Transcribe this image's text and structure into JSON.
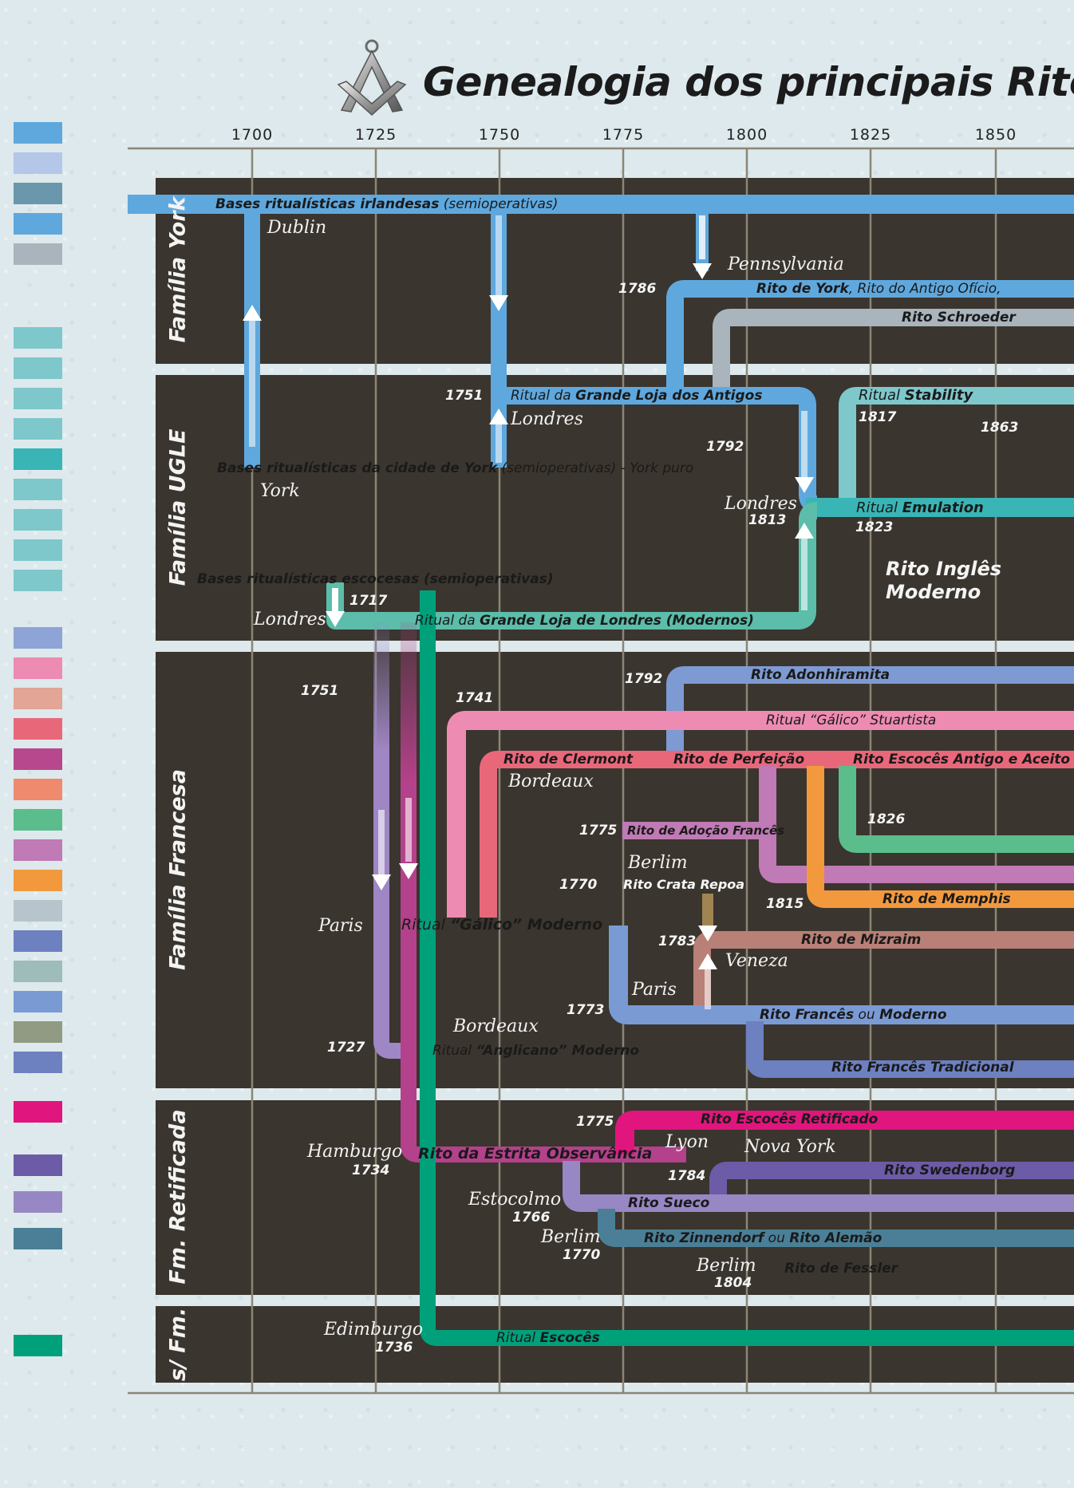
{
  "title": "Genealogia dos principais Ritos",
  "timeline": {
    "years": [
      "1700",
      "1725",
      "1750",
      "1775",
      "1800",
      "1825",
      "1850"
    ]
  },
  "families": {
    "york": "Família York",
    "ugle": "Família UGLE",
    "francesa": "Família Francesa",
    "retificada": "Fm. Retificada",
    "sfm": "s/ Fm."
  },
  "york": {
    "irish_bold": "Bases ritualísticas irlandesas",
    "irish_rest": "(semioperativas)",
    "dublin": "Dublin",
    "pennsylvania": "Pennsylvania",
    "y1786": "1786",
    "york_bold": "Rito de York",
    "york_rest": ", Rito do Antigo Ofício,",
    "schroeder": "Rito Schroeder"
  },
  "ugle": {
    "y1751": "1751",
    "antigos_pre": "Ritual da ",
    "antigos_bold": "Grande Loja dos Antigos",
    "londres_a": "Londres",
    "stability_pre": "Ritual ",
    "stability_bold": "Stability",
    "y1817": "1817",
    "y1863": "1863",
    "y1792": "1792",
    "york_bases_bold": "Bases ritualísticas da cidade de York",
    "york_bases_rest": "(semioperativas) - York puro",
    "york_city": "York",
    "londres_b": "Londres",
    "y1813": "1813",
    "emulation_pre": "Ritual ",
    "emulation_bold": "Emulation",
    "y1823": "1823",
    "ingles_1": "Rito Inglês",
    "ingles_2": "Moderno",
    "scot_bases": "Bases ritualísticas escocesas (semioperativas)",
    "y1717": "1717",
    "londres_c": "Londres",
    "modernos_pre": "Ritual da ",
    "modernos_bold": "Grande Loja de Londres (Modernos)"
  },
  "francesa": {
    "y1751": "1751",
    "y1741": "1741",
    "y1792": "1792",
    "adonhiramita": "Rito Adonhiramita",
    "galico_stuart": "Ritual “Gálico” Stuartista",
    "clermont": "Rito de Clermont",
    "perfeicao": "Rito de Perfeição",
    "reaa": "Rito Escocês Antigo e Aceito",
    "bordeaux_a": "Bordeaux",
    "y1826": "1826",
    "y1775": "1775",
    "adocao": "Rito de Adoção Francês",
    "berlim": "Berlim",
    "y1770": "1770",
    "crata": "Rito Crata Repoa",
    "y1815": "1815",
    "memphis": "Rito de Memphis",
    "paris_a": "Paris",
    "galico_mod_pre": "Ritual ",
    "galico_mod_bold": "“Gálico” Moderno",
    "y1783": "1783",
    "mizraim": "Rito de Mizraim",
    "veneza": "Veneza",
    "paris_b": "Paris",
    "y1773": "1773",
    "frances_bold": "Rito Francês",
    "frances_ou": " ou ",
    "frances_mod": "Moderno",
    "bordeaux_b": "Bordeaux",
    "y1727": "1727",
    "anglicano_pre": "Ritual ",
    "anglicano_bold": "“Anglicano” Moderno",
    "tradicional": "Rito Francês Tradicional"
  },
  "retificada": {
    "y1775": "1775",
    "retificado": "Rito Escocês Retificado",
    "hamburgo": "Hamburgo",
    "y1734": "1734",
    "estrita": "Rito da Estrita Observância",
    "lyon": "Lyon",
    "nova_york": "Nova York",
    "y1784": "1784",
    "swedenborg": "Rito Swedenborg",
    "estocolmo": "Estocolmo",
    "y1766": "1766",
    "sueco": "Rito Sueco",
    "berlim_a": "Berlim",
    "y1770": "1770",
    "zinn_bold": "Rito Zinnendorf",
    "zinn_ou": " ou ",
    "zinn_alemao": "Rito Alemão",
    "berlim_b": "Berlim",
    "y1804": "1804",
    "fessler": "Rito de Fessler"
  },
  "sfm": {
    "edimburgo": "Edimburgo",
    "y1736": "1736",
    "escoces_pre": "Ritual ",
    "escoces_bold": "Escocês"
  },
  "colors": {
    "york_blue": "#5fa8de",
    "york_grey": "#a9b4bc",
    "ugle_teal": "#7ec8cc",
    "emulation": "#3ab5b6",
    "scot_teal": "#5bbdaa",
    "adonhiramita": "#7e9ad3",
    "pink": "#ee8bb2",
    "clermont": "#e8687a",
    "adocao": "#c07ab5",
    "reaa": "#5bbd8c",
    "memphis": "#f2993e",
    "crata": "#a08552",
    "mizraim": "#b88076",
    "frances": "#7a9ad4",
    "tradicional": "#6d80c0",
    "anglicano": "#9f86c4",
    "estrita": "#b4418b",
    "retificado": "#e0157d",
    "swedenborg": "#6c5ba6",
    "sueco": "#9787c4",
    "zinnendorf": "#4a7f97",
    "fessler": "#c3a584",
    "escoces": "#00a07b"
  }
}
